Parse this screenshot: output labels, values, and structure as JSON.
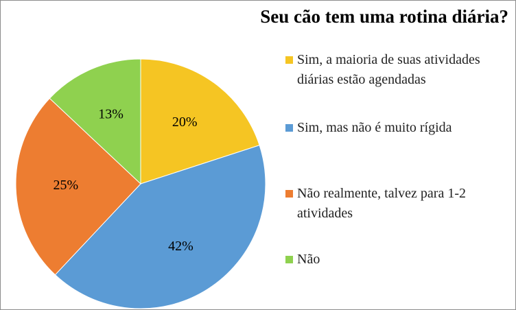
{
  "chart_data": {
    "type": "pie",
    "title": "Seu cão tem uma rotina diária?",
    "categories": [
      "Sim, a maioria de suas atividades diárias estão agendadas",
      "Sim, mas não é muito rígida",
      "Não realmente, talvez para 1-2 atividades",
      "Não"
    ],
    "values": [
      20,
      42,
      25,
      13
    ],
    "value_labels": [
      "20%",
      "42%",
      "25%",
      "13%"
    ],
    "colors": [
      "#f5c523",
      "#5b9bd5",
      "#ed7d31",
      "#8fd14f"
    ]
  }
}
